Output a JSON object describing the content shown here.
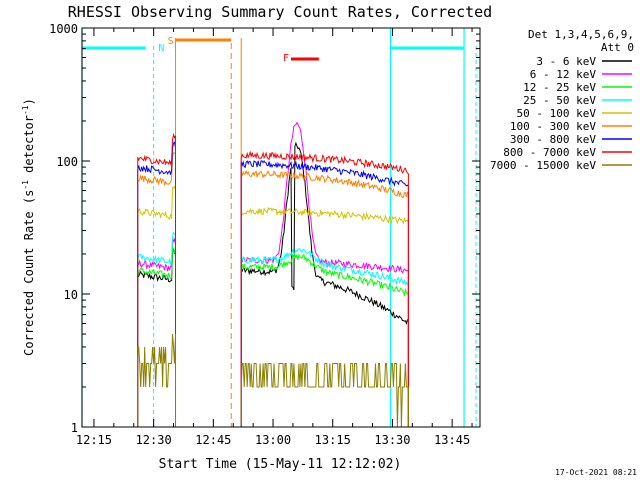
{
  "chart_data": {
    "type": "line",
    "title": "RHESSI Observing Summary Count Rates, Corrected",
    "xlabel": "Start Time (15-May-11 12:12:02)",
    "ylabel": "Corrected Count Rate (s⁻¹ detector⁻¹)",
    "ylabel_parts": {
      "a": "Corrected Count Rate (s",
      "b": "-1",
      "c": " detector",
      "d": "-1",
      "e": ")"
    },
    "yscale": "log",
    "ylim": [
      1,
      1000
    ],
    "xlim_minutes": [
      0,
      100
    ],
    "x_ticks": [
      {
        "label": "12:15",
        "minute": 3
      },
      {
        "label": "12:30",
        "minute": 18
      },
      {
        "label": "12:45",
        "minute": 33
      },
      {
        "label": "13:00",
        "minute": 48
      },
      {
        "label": "13:15",
        "minute": 63
      },
      {
        "label": "13:30",
        "minute": 78
      },
      {
        "label": "13:45",
        "minute": 93
      }
    ],
    "y_ticks": [
      {
        "label": "1",
        "value": 1
      },
      {
        "label": "10",
        "value": 10
      },
      {
        "label": "100",
        "value": 100
      },
      {
        "label": "1000",
        "value": 1000
      }
    ],
    "legend": {
      "header1": "Det 1,3,4,5,6,9,",
      "header2": "Att 0",
      "placement": "right"
    },
    "intervals": {
      "data_1": [
        14,
        23.5
      ],
      "data_2": [
        40,
        82
      ],
      "attenuator_dashed": [
        37.5
      ],
      "night_lines": [
        0,
        77.5,
        96
      ]
    },
    "flags": [
      {
        "label": "N",
        "color": "#00ffff"
      },
      {
        "label": "S",
        "color": "#ff8000"
      },
      {
        "label": "F",
        "color": "#ff0000"
      }
    ],
    "series": [
      {
        "name": "3 - 6 keV",
        "color": "#000000",
        "pre": 14,
        "base2": 15,
        "peak": 130,
        "end": 6
      },
      {
        "name": "6 - 12 keV",
        "color": "#ff00ff",
        "pre": 17,
        "base2": 18,
        "peak": 190,
        "end": 15
      },
      {
        "name": "12 - 25 keV",
        "color": "#00ff00",
        "pre": 15,
        "base2": 16,
        "peak": 0,
        "end": 10
      },
      {
        "name": "25 - 50 keV",
        "color": "#00ffff",
        "pre": 19,
        "base2": 18,
        "peak": 0,
        "end": 12
      },
      {
        "name": "50 - 100 keV",
        "color": "#d4c400",
        "pre": 42,
        "base2": 42,
        "peak": 0,
        "end": 35
      },
      {
        "name": "100 - 300 keV",
        "color": "#ff8000",
        "pre": 75,
        "base2": 80,
        "peak": 0,
        "end": 55
      },
      {
        "name": "300 - 800 keV",
        "color": "#0000ff",
        "pre": 90,
        "base2": 95,
        "peak": 0,
        "end": 65
      },
      {
        "name": "800 - 7000 keV",
        "color": "#ff0000",
        "pre": 105,
        "base2": 110,
        "peak": 0,
        "end": 85
      },
      {
        "name": "7000 - 15000 keV",
        "color": "#8b8000",
        "pre": 3,
        "base2": 2.5,
        "peak": 0,
        "end": 2
      }
    ],
    "footer": "17-Oct-2021 08:21"
  }
}
